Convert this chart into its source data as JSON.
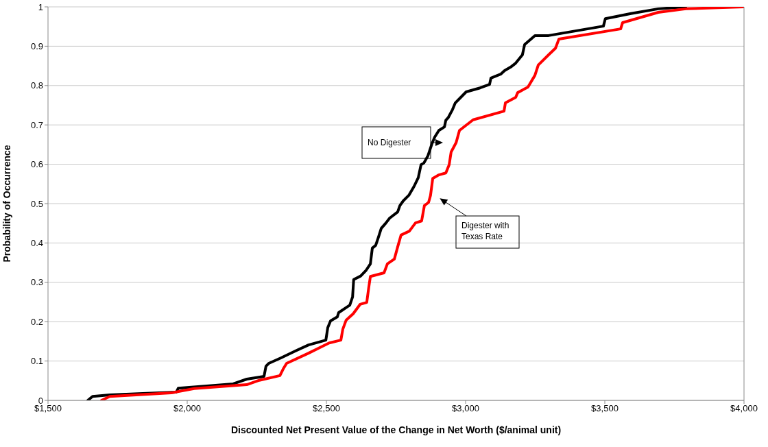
{
  "chart_data": {
    "type": "line",
    "xlabel": "Discounted Net Present Value of the Change in Net Worth ($/animal unit)",
    "ylabel": "Probability of Occurrence",
    "xlim": [
      1500,
      4000
    ],
    "xticks": [
      {
        "value": 1500,
        "label": "$1,500"
      },
      {
        "value": 2000,
        "label": "$2,000"
      },
      {
        "value": 2500,
        "label": "$2,500"
      },
      {
        "value": 3000,
        "label": "$3,000"
      },
      {
        "value": 3500,
        "label": "$3,500"
      },
      {
        "value": 4000,
        "label": "$4,000"
      }
    ],
    "ylim": [
      0,
      1
    ],
    "yticks": [
      0,
      0.1,
      0.2,
      0.3,
      0.4,
      0.5,
      0.6,
      0.7,
      0.8,
      0.9,
      1
    ],
    "grid": "y",
    "marker": "none",
    "line_style": "solid",
    "series": [
      {
        "color": "#000000",
        "x": [
          1643,
          1660,
          1722,
          1961,
          1968,
          2165,
          2214,
          2276,
          2283,
          2293,
          2337,
          2387,
          2436,
          2498,
          2505,
          2515,
          2539,
          2544,
          2584,
          2594,
          2598,
          2623,
          2643,
          2658,
          2665,
          2677,
          2687,
          2697,
          2714,
          2727,
          2756,
          2764,
          2776,
          2796,
          2815,
          2830,
          2840,
          2850,
          2865,
          2879,
          2889,
          2904,
          2924,
          2929,
          2938,
          2953,
          2963,
          2973,
          3002,
          3052,
          3086,
          3091,
          3126,
          3140,
          3162,
          3180,
          3204,
          3212,
          3249,
          3298,
          3495,
          3502,
          3594,
          3692,
          3791
        ],
        "values": [
          0,
          0.01,
          0.014,
          0.021,
          0.031,
          0.042,
          0.054,
          0.061,
          0.087,
          0.094,
          0.108,
          0.125,
          0.141,
          0.153,
          0.185,
          0.202,
          0.212,
          0.223,
          0.242,
          0.263,
          0.307,
          0.316,
          0.331,
          0.347,
          0.387,
          0.394,
          0.415,
          0.437,
          0.451,
          0.463,
          0.479,
          0.495,
          0.507,
          0.521,
          0.544,
          0.566,
          0.599,
          0.603,
          0.622,
          0.652,
          0.669,
          0.686,
          0.695,
          0.712,
          0.719,
          0.739,
          0.756,
          0.763,
          0.784,
          0.794,
          0.803,
          0.819,
          0.829,
          0.838,
          0.847,
          0.857,
          0.878,
          0.904,
          0.927,
          0.927,
          0.951,
          0.97,
          0.983,
          0.995,
          1
        ]
      },
      {
        "color": "#ff0000",
        "x": [
          1692,
          1722,
          1943,
          2025,
          2214,
          2259,
          2333,
          2345,
          2357,
          2436,
          2510,
          2552,
          2559,
          2571,
          2596,
          2621,
          2645,
          2652,
          2658,
          2707,
          2719,
          2744,
          2756,
          2768,
          2798,
          2820,
          2842,
          2852,
          2867,
          2874,
          2882,
          2904,
          2929,
          2941,
          2948,
          2966,
          2978,
          3027,
          3138,
          3143,
          3180,
          3187,
          3224,
          3249,
          3261,
          3298,
          3323,
          3335,
          3557,
          3564,
          3692,
          3791,
          4000
        ],
        "values": [
          0,
          0.01,
          0.019,
          0.03,
          0.04,
          0.051,
          0.063,
          0.08,
          0.094,
          0.12,
          0.146,
          0.153,
          0.181,
          0.204,
          0.22,
          0.244,
          0.249,
          0.286,
          0.315,
          0.324,
          0.347,
          0.359,
          0.39,
          0.42,
          0.43,
          0.451,
          0.456,
          0.495,
          0.503,
          0.521,
          0.564,
          0.573,
          0.578,
          0.599,
          0.631,
          0.655,
          0.686,
          0.713,
          0.735,
          0.756,
          0.77,
          0.782,
          0.796,
          0.826,
          0.852,
          0.878,
          0.895,
          0.918,
          0.944,
          0.96,
          0.986,
          0.995,
          1
        ]
      }
    ],
    "annotations": [
      "No Digester",
      "Digester with\nTexas Rate"
    ]
  }
}
